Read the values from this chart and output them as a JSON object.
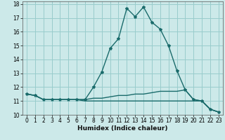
{
  "title": "",
  "xlabel": "Humidex (Indice chaleur)",
  "ylabel": "",
  "xlim": [
    -0.5,
    23.5
  ],
  "ylim": [
    10,
    18.2
  ],
  "yticks": [
    10,
    11,
    12,
    13,
    14,
    15,
    16,
    17,
    18
  ],
  "xticks": [
    0,
    1,
    2,
    3,
    4,
    5,
    6,
    7,
    8,
    9,
    10,
    11,
    12,
    13,
    14,
    15,
    16,
    17,
    18,
    19,
    20,
    21,
    22,
    23
  ],
  "background_color": "#cce9e9",
  "grid_color": "#99cccc",
  "line_color": "#1a6b6b",
  "series1_x": [
    0,
    1,
    2,
    3,
    4,
    5,
    6,
    7,
    8,
    9,
    10,
    11,
    12,
    13,
    14,
    15,
    16,
    17,
    18,
    19,
    20,
    21,
    22,
    23
  ],
  "series1_y": [
    11.5,
    11.4,
    11.1,
    11.1,
    11.1,
    11.1,
    11.1,
    11.1,
    12.0,
    13.1,
    14.8,
    15.5,
    17.7,
    17.1,
    17.8,
    16.7,
    16.2,
    15.0,
    13.2,
    11.8,
    11.1,
    11.0,
    10.4,
    10.2
  ],
  "series2_x": [
    0,
    1,
    2,
    3,
    4,
    5,
    6,
    7,
    8,
    9,
    10,
    11,
    12,
    13,
    14,
    15,
    16,
    17,
    18,
    19,
    20,
    21,
    22,
    23
  ],
  "series2_y": [
    11.5,
    11.4,
    11.1,
    11.1,
    11.1,
    11.1,
    11.1,
    11.1,
    11.2,
    11.2,
    11.3,
    11.4,
    11.4,
    11.5,
    11.5,
    11.6,
    11.7,
    11.7,
    11.7,
    11.8,
    11.1,
    11.0,
    10.4,
    10.2
  ],
  "series3_x": [
    0,
    1,
    2,
    3,
    4,
    5,
    6,
    7,
    8,
    9,
    10,
    11,
    12,
    13,
    14,
    15,
    16,
    17,
    18,
    19,
    20,
    21,
    22,
    23
  ],
  "series3_y": [
    11.5,
    11.4,
    11.1,
    11.1,
    11.1,
    11.1,
    11.1,
    11.0,
    11.0,
    11.0,
    11.0,
    11.0,
    11.0,
    11.0,
    11.0,
    11.0,
    11.0,
    11.0,
    11.0,
    11.0,
    11.0,
    11.0,
    10.4,
    10.2
  ],
  "xlabel_fontsize": 6.5,
  "tick_fontsize": 5.5,
  "linewidth": 1.0,
  "marker_size": 3.0
}
